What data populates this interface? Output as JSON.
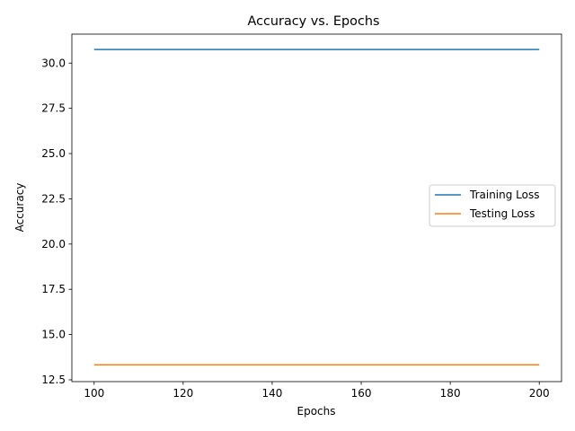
{
  "chart_data": {
    "type": "line",
    "title": "Accuracy vs. Epochs",
    "xlabel": "Epochs",
    "ylabel": "Accuracy",
    "xlim": [
      95,
      205
    ],
    "ylim": [
      12.4,
      31.6
    ],
    "xticks": [
      100,
      120,
      140,
      160,
      180,
      200
    ],
    "yticks": [
      12.5,
      15.0,
      17.5,
      20.0,
      22.5,
      25.0,
      27.5,
      30.0
    ],
    "grid": false,
    "legend": "center-right",
    "series": [
      {
        "name": "Training Loss",
        "color": "#1f77b4",
        "x": [
          100,
          200
        ],
        "y": [
          30.75,
          30.75
        ]
      },
      {
        "name": "Testing Loss",
        "color": "#ff7f0e",
        "x": [
          100,
          200
        ],
        "y": [
          13.33,
          13.33
        ]
      }
    ]
  }
}
